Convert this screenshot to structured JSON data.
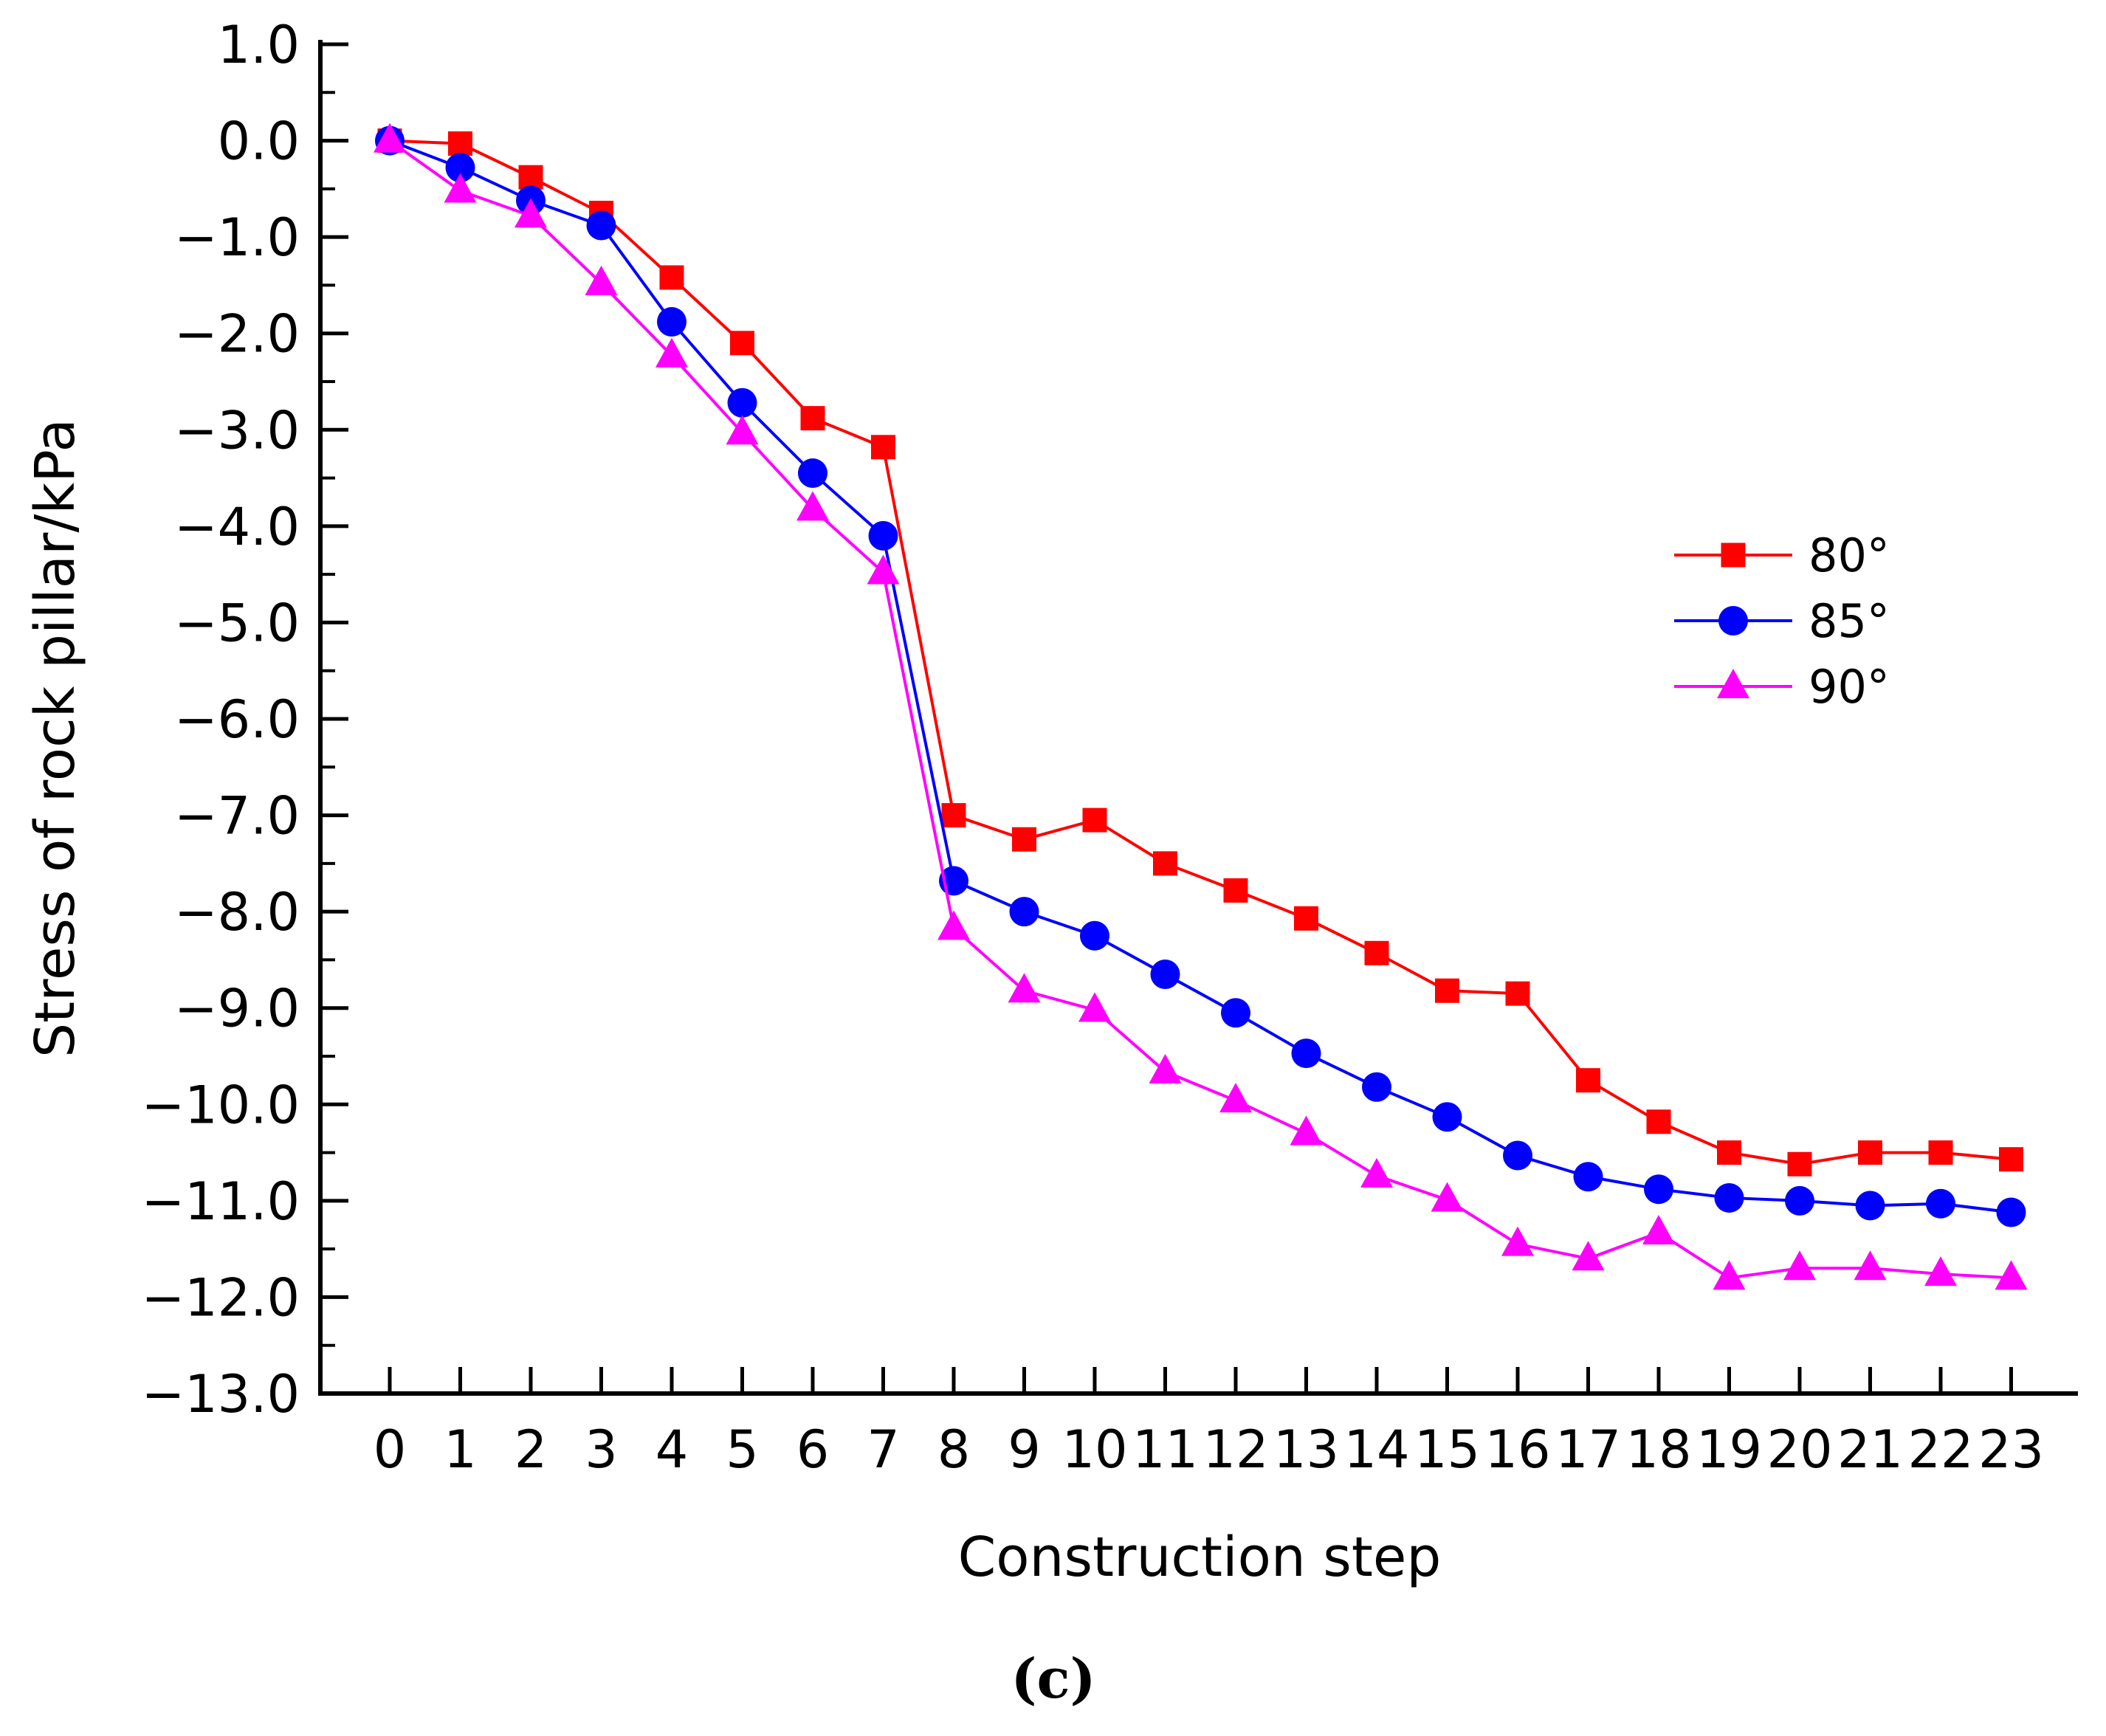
{
  "chart_data": {
    "type": "line",
    "title": "",
    "xlabel": "Construction step",
    "ylabel": "Stress of rock pillar/kPa",
    "panel_label": "(c)",
    "x": [
      0,
      1,
      2,
      3,
      4,
      5,
      6,
      7,
      8,
      9,
      10,
      11,
      12,
      13,
      14,
      15,
      16,
      17,
      18,
      19,
      20,
      21,
      22,
      23
    ],
    "x_tick_labels": [
      "0",
      "1",
      "2",
      "3",
      "4",
      "5",
      "6",
      "7",
      "8",
      "9",
      "10",
      "11",
      "12",
      "13",
      "14",
      "15",
      "16",
      "17",
      "18",
      "19",
      "20",
      "21",
      "22",
      "23"
    ],
    "xlim": [
      -1,
      24
    ],
    "ylim": [
      -13.0,
      1.0
    ],
    "y_ticks": [
      1.0,
      0.0,
      -1.0,
      -2.0,
      -3.0,
      -4.0,
      -5.0,
      -6.0,
      -7.0,
      -8.0,
      -9.0,
      -10.0,
      -11.0,
      -12.0,
      -13.0
    ],
    "y_tick_labels": [
      "1.0",
      "0.0",
      "−1.0",
      "−2.0",
      "−3.0",
      "−4.0",
      "−5.0",
      "−6.0",
      "−7.0",
      "−8.0",
      "−9.0",
      "−10.0",
      "−11.0",
      "−12.0",
      "−13.0"
    ],
    "grid": false,
    "legend_position": "right",
    "series": [
      {
        "name": "80°",
        "color": "#ff0000",
        "marker": "square",
        "values": [
          0.0,
          -0.03,
          -0.38,
          -0.75,
          -1.42,
          -2.1,
          -2.88,
          -3.18,
          -7.0,
          -7.25,
          -7.05,
          -7.5,
          -7.78,
          -8.07,
          -8.43,
          -8.82,
          -8.85,
          -9.75,
          -10.18,
          -10.5,
          -10.62,
          -10.5,
          -10.5,
          -10.57
        ]
      },
      {
        "name": "85°",
        "color": "#0000ff",
        "marker": "circle",
        "values": [
          0.0,
          -0.28,
          -0.62,
          -0.88,
          -1.88,
          -2.72,
          -3.45,
          -4.1,
          -7.68,
          -8.0,
          -8.25,
          -8.65,
          -9.05,
          -9.47,
          -9.82,
          -10.13,
          -10.53,
          -10.75,
          -10.88,
          -10.97,
          -11.0,
          -11.05,
          -11.03,
          -11.12
        ]
      },
      {
        "name": "90°",
        "color": "#ff00ff",
        "marker": "triangle",
        "values": [
          0.0,
          -0.52,
          -0.78,
          -1.48,
          -2.23,
          -3.03,
          -3.82,
          -4.48,
          -8.17,
          -8.82,
          -9.02,
          -9.66,
          -9.96,
          -10.3,
          -10.74,
          -10.99,
          -11.45,
          -11.6,
          -11.33,
          -11.8,
          -11.7,
          -11.7,
          -11.76,
          -11.8
        ]
      }
    ]
  }
}
